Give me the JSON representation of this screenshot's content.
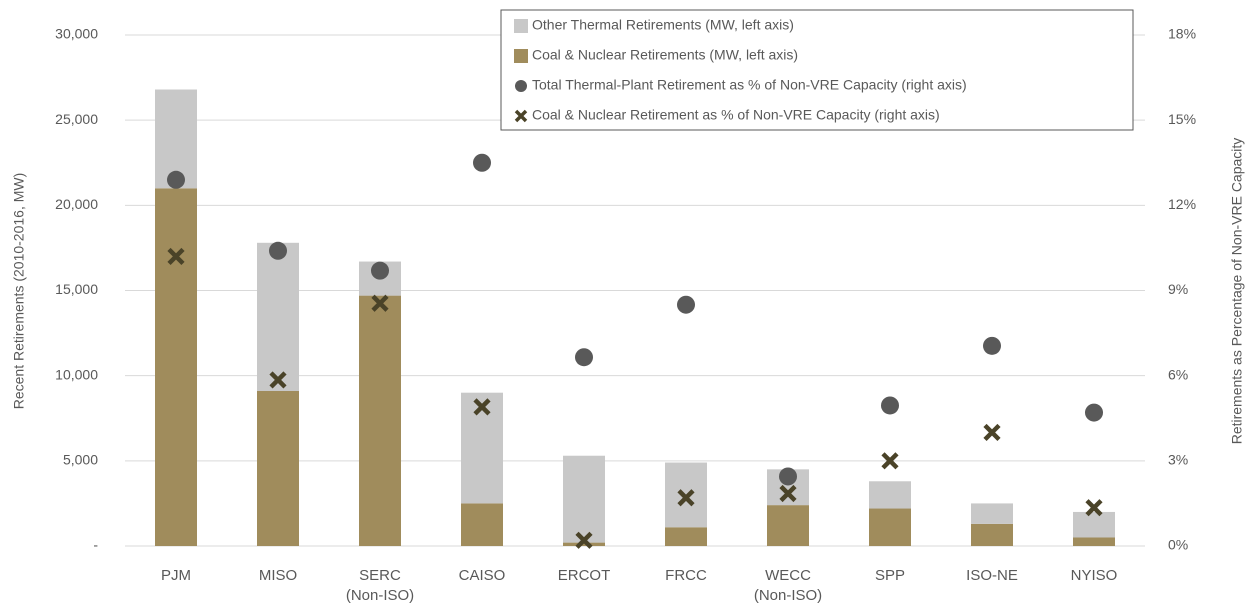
{
  "chart_data": {
    "type": "bar",
    "y_label": "Recent Retirements (2010-2016, MW)",
    "y2_label": "Retirements as Percentage of Non-VRE Capacity",
    "categories": [
      "PJM",
      "MISO",
      "SERC (Non-ISO)",
      "CAISO",
      "ERCOT",
      "FRCC",
      "WECC (Non-ISO)",
      "SPP",
      "ISO-NE",
      "NYISO"
    ],
    "ylim": [
      0,
      30000
    ],
    "yticks": [
      {
        "value": 0,
        "label": "-"
      },
      {
        "value": 5000,
        "label": "5,000"
      },
      {
        "value": 10000,
        "label": "10,000"
      },
      {
        "value": 15000,
        "label": "15,000"
      },
      {
        "value": 20000,
        "label": "20,000"
      },
      {
        "value": 25000,
        "label": "25,000"
      },
      {
        "value": 30000,
        "label": "30,000"
      }
    ],
    "y2lim": [
      0,
      18
    ],
    "y2ticks": [
      {
        "value": 0,
        "label": "0%"
      },
      {
        "value": 3,
        "label": "3%"
      },
      {
        "value": 6,
        "label": "6%"
      },
      {
        "value": 9,
        "label": "9%"
      },
      {
        "value": 12,
        "label": "12%"
      },
      {
        "value": 15,
        "label": "15%"
      },
      {
        "value": 18,
        "label": "18%"
      }
    ],
    "grid": true,
    "legend": "top-right",
    "series": [
      {
        "name": "Other Thermal Retirements (MW, left axis)",
        "type": "bar",
        "color": "#c8c8c8",
        "values": [
          5800,
          8700,
          2000,
          6500,
          5100,
          3800,
          2100,
          1600,
          1200,
          1500
        ]
      },
      {
        "name": "Coal & Nuclear Retirements (MW, left axis)",
        "type": "bar",
        "color": "#a08c5c",
        "values": [
          21000,
          9100,
          14700,
          2500,
          200,
          1100,
          2400,
          2200,
          1300,
          500
        ]
      },
      {
        "name": "Total Thermal-Plant Retirement as % of Non-VRE Capacity (right axis)",
        "type": "scatter",
        "marker": "circle",
        "axis": "y2",
        "color": "#595959",
        "values": [
          12.9,
          10.4,
          9.7,
          13.5,
          6.65,
          8.5,
          2.45,
          4.95,
          7.05,
          4.7
        ]
      },
      {
        "name": "Coal & Nuclear Retirement as % of Non-VRE Capacity (right axis)",
        "type": "scatter",
        "marker": "x",
        "axis": "y2",
        "color": "#4a4328",
        "values": [
          10.2,
          5.85,
          8.55,
          4.9,
          0.2,
          1.7,
          1.85,
          3.0,
          4.0,
          1.35
        ]
      }
    ]
  }
}
